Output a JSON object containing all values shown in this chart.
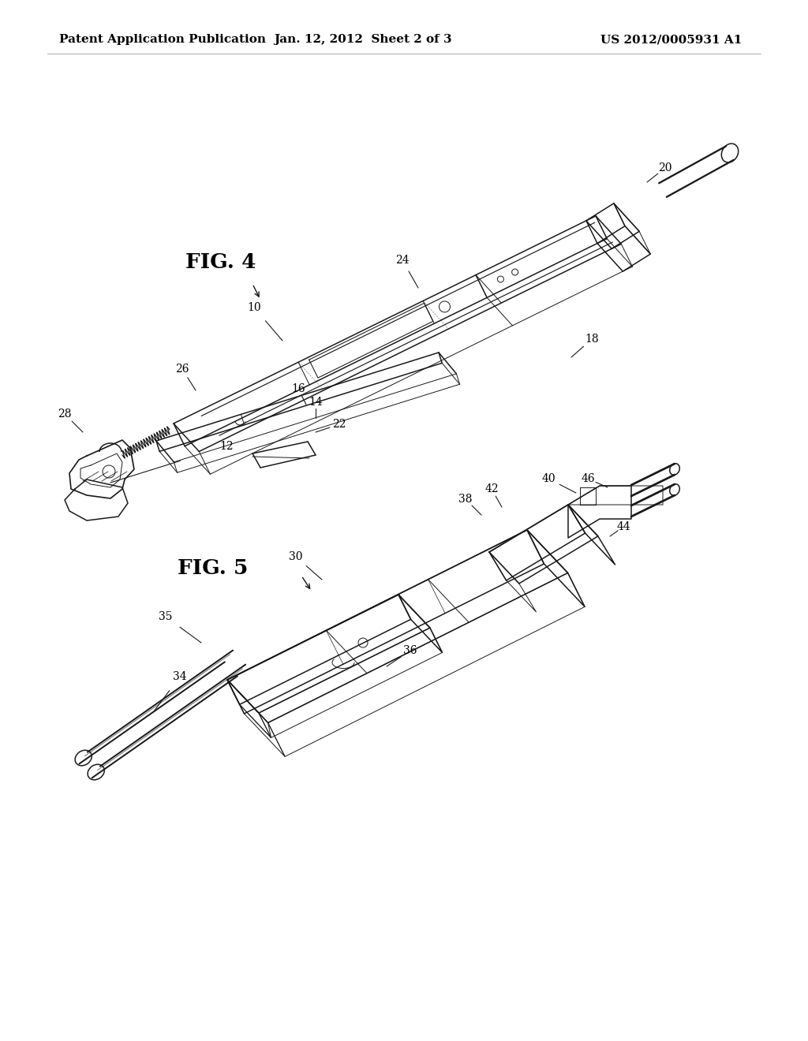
{
  "background_color": "#ffffff",
  "header_left": "Patent Application Publication",
  "header_center": "Jan. 12, 2012  Sheet 2 of 3",
  "header_right": "US 2012/0005931 A1",
  "line_color": "#1a1a1a",
  "line_width": 1.1,
  "thin_lw": 0.7,
  "annotation_fontsize": 10,
  "header_fontsize": 11,
  "fig_label_fontsize": 19
}
